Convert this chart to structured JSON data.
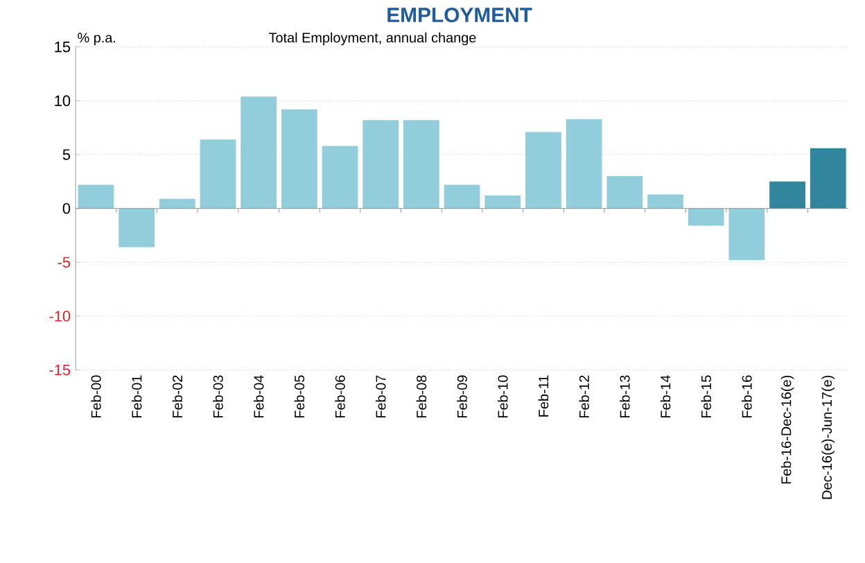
{
  "chart_data": {
    "type": "bar",
    "title": "EMPLOYMENT",
    "subtitle": "Total Employment, annual change",
    "ylabel": "% p.a.",
    "categories": [
      "Feb-00",
      "Feb-01",
      "Feb-02",
      "Feb-03",
      "Feb-04",
      "Feb-05",
      "Feb-06",
      "Feb-07",
      "Feb-08",
      "Feb-09",
      "Feb-10",
      "Feb-11",
      "Feb-12",
      "Feb-13",
      "Feb-14",
      "Feb-15",
      "Feb-16",
      "Feb-16-Dec-16(e)",
      "Dec-16(e)-Jun-17(e)"
    ],
    "values": [
      2.2,
      -3.6,
      0.9,
      6.4,
      10.4,
      9.2,
      5.8,
      8.2,
      8.2,
      2.2,
      1.2,
      7.1,
      8.3,
      3.0,
      1.3,
      -1.6,
      -4.8,
      2.5,
      5.6
    ],
    "colors": [
      "#92cddc",
      "#92cddc",
      "#92cddc",
      "#92cddc",
      "#92cddc",
      "#92cddc",
      "#92cddc",
      "#92cddc",
      "#92cddc",
      "#92cddc",
      "#92cddc",
      "#92cddc",
      "#92cddc",
      "#92cddc",
      "#92cddc",
      "#92cddc",
      "#92cddc",
      "#31859c",
      "#31859c"
    ],
    "ylim": [
      -15,
      15
    ],
    "yticks": [
      -15,
      -10,
      -5,
      0,
      5,
      10,
      15
    ],
    "grid": "y"
  }
}
